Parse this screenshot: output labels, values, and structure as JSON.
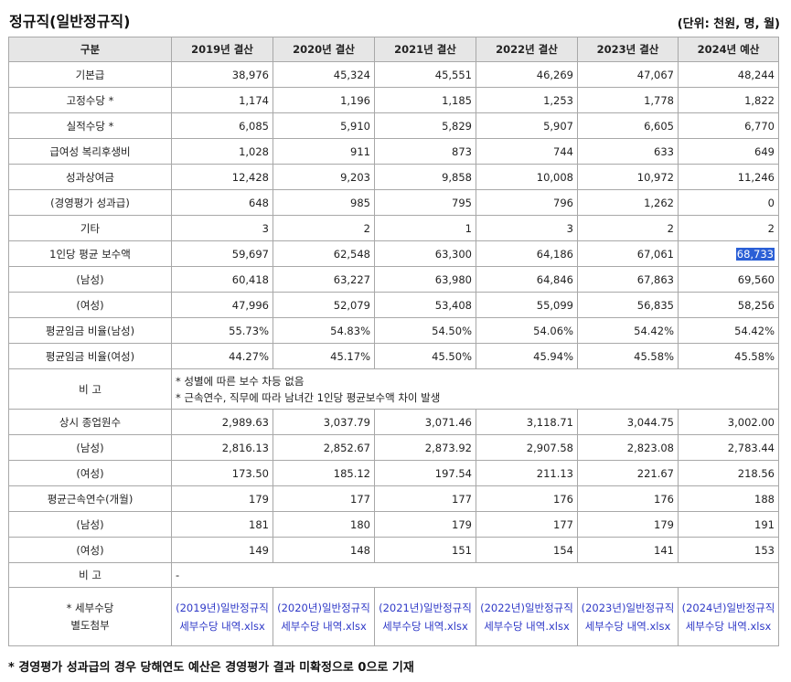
{
  "title": "정규직(일반정규직)",
  "unit": "(단위: 천원, 명, 월)",
  "headers": [
    "구분",
    "2019년 결산",
    "2020년 결산",
    "2021년 결산",
    "2022년 결산",
    "2023년 결산",
    "2024년 예산"
  ],
  "rows1": [
    {
      "label": "기본급",
      "values": [
        "38,976",
        "45,324",
        "45,551",
        "46,269",
        "47,067",
        "48,244"
      ]
    },
    {
      "label": "고정수당 *",
      "values": [
        "1,174",
        "1,196",
        "1,185",
        "1,253",
        "1,778",
        "1,822"
      ]
    },
    {
      "label": "실적수당 *",
      "values": [
        "6,085",
        "5,910",
        "5,829",
        "5,907",
        "6,605",
        "6,770"
      ]
    },
    {
      "label": "급여성 복리후생비",
      "values": [
        "1,028",
        "911",
        "873",
        "744",
        "633",
        "649"
      ]
    },
    {
      "label": "성과상여금",
      "values": [
        "12,428",
        "9,203",
        "9,858",
        "10,008",
        "10,972",
        "11,246"
      ]
    },
    {
      "label": "(경영평가 성과급)",
      "values": [
        "648",
        "985",
        "795",
        "796",
        "1,262",
        "0"
      ]
    },
    {
      "label": "기타",
      "values": [
        "3",
        "2",
        "1",
        "3",
        "2",
        "2"
      ]
    },
    {
      "label": "1인당 평균 보수액",
      "values": [
        "59,697",
        "62,548",
        "63,300",
        "64,186",
        "67,061",
        "68,733"
      ]
    },
    {
      "label": "(남성)",
      "values": [
        "60,418",
        "63,227",
        "63,980",
        "64,846",
        "67,863",
        "69,560"
      ]
    },
    {
      "label": "(여성)",
      "values": [
        "47,996",
        "52,079",
        "53,408",
        "55,099",
        "56,835",
        "58,256"
      ]
    },
    {
      "label": "평균임금 비율(남성)",
      "values": [
        "55.73%",
        "54.83%",
        "54.50%",
        "54.06%",
        "54.42%",
        "54.42%"
      ]
    },
    {
      "label": "평균임금 비율(여성)",
      "values": [
        "44.27%",
        "45.17%",
        "45.50%",
        "45.94%",
        "45.58%",
        "45.58%"
      ]
    }
  ],
  "note1": {
    "label": "비 고",
    "line1": "* 성별에 따른 보수 차등 없음",
    "line2": "* 근속연수, 직무에 따라 남녀간 1인당 평균보수액 차이 발생"
  },
  "rows2": [
    {
      "label": "상시 종업원수",
      "values": [
        "2,989.63",
        "3,037.79",
        "3,071.46",
        "3,118.71",
        "3,044.75",
        "3,002.00"
      ]
    },
    {
      "label": "(남성)",
      "values": [
        "2,816.13",
        "2,852.67",
        "2,873.92",
        "2,907.58",
        "2,823.08",
        "2,783.44"
      ]
    },
    {
      "label": "(여성)",
      "values": [
        "173.50",
        "185.12",
        "197.54",
        "211.13",
        "221.67",
        "218.56"
      ]
    },
    {
      "label": "평균근속연수(개월)",
      "values": [
        "179",
        "177",
        "177",
        "176",
        "176",
        "188"
      ]
    },
    {
      "label": "(남성)",
      "values": [
        "181",
        "180",
        "179",
        "177",
        "179",
        "191"
      ]
    },
    {
      "label": "(여성)",
      "values": [
        "149",
        "148",
        "151",
        "154",
        "141",
        "153"
      ]
    }
  ],
  "note2": {
    "label": "비 고",
    "text": "-"
  },
  "attach": {
    "label_line1": "* 세부수당",
    "label_line2": "별도첨부",
    "links": [
      "(2019년)일반정규직 세부수당 내역.xlsx",
      "(2020년)일반정규직 세부수당 내역.xlsx",
      "(2021년)일반정규직 세부수당 내역.xlsx",
      "(2022년)일반정규직 세부수당 내역.xlsx",
      "(2023년)일반정규직 세부수당 내역.xlsx",
      "(2024년)일반정규직 세부수당 내역.xlsx"
    ]
  },
  "footnote": "* 경영평가 성과급의 경우 당해연도 예산은 경영평가 결과 미확정으로 0으로 기재",
  "colors": {
    "link": "#2f39c7",
    "highlight": "#2b5fd6",
    "header_bg": "#e6e6e6"
  }
}
